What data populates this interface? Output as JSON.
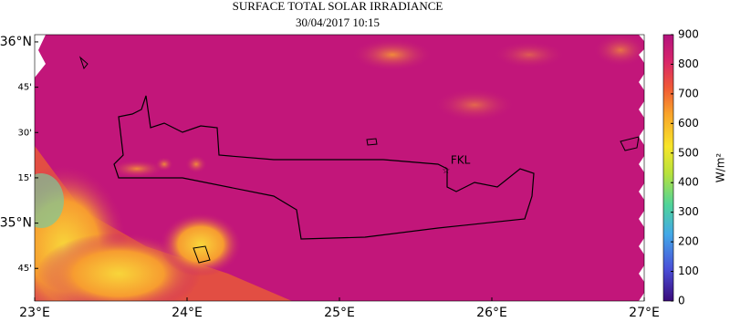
{
  "title": "SURFACE TOTAL SOLAR IRRADIANCE",
  "subtitle": "30/04/2017  10:15",
  "lat_lim": [
    34.57,
    36.04
  ],
  "lon_lim": [
    23,
    27
  ],
  "lat_ticks": [
    {
      "value": 36,
      "label": "36°N"
    },
    {
      "value": 35.75,
      "label": "45'"
    },
    {
      "value": 35.5,
      "label": "30'"
    },
    {
      "value": 35.25,
      "label": "15'"
    },
    {
      "value": 35,
      "label": "35°N"
    },
    {
      "value": 34.75,
      "label": "45'"
    }
  ],
  "lon_ticks": [
    {
      "value": 23,
      "label": "23°E"
    },
    {
      "value": 24,
      "label": "24°E"
    },
    {
      "value": 25,
      "label": "25°E"
    },
    {
      "value": 26,
      "label": "26°E"
    },
    {
      "value": 27,
      "label": "27°E"
    }
  ],
  "station": {
    "label": "FKL",
    "lat": 35.29,
    "lon": 25.7
  },
  "colorbar": {
    "label": "W/m²",
    "lim": [
      0,
      900
    ],
    "ticks": [
      0,
      100,
      200,
      300,
      400,
      500,
      600,
      700,
      800,
      900
    ]
  }
}
